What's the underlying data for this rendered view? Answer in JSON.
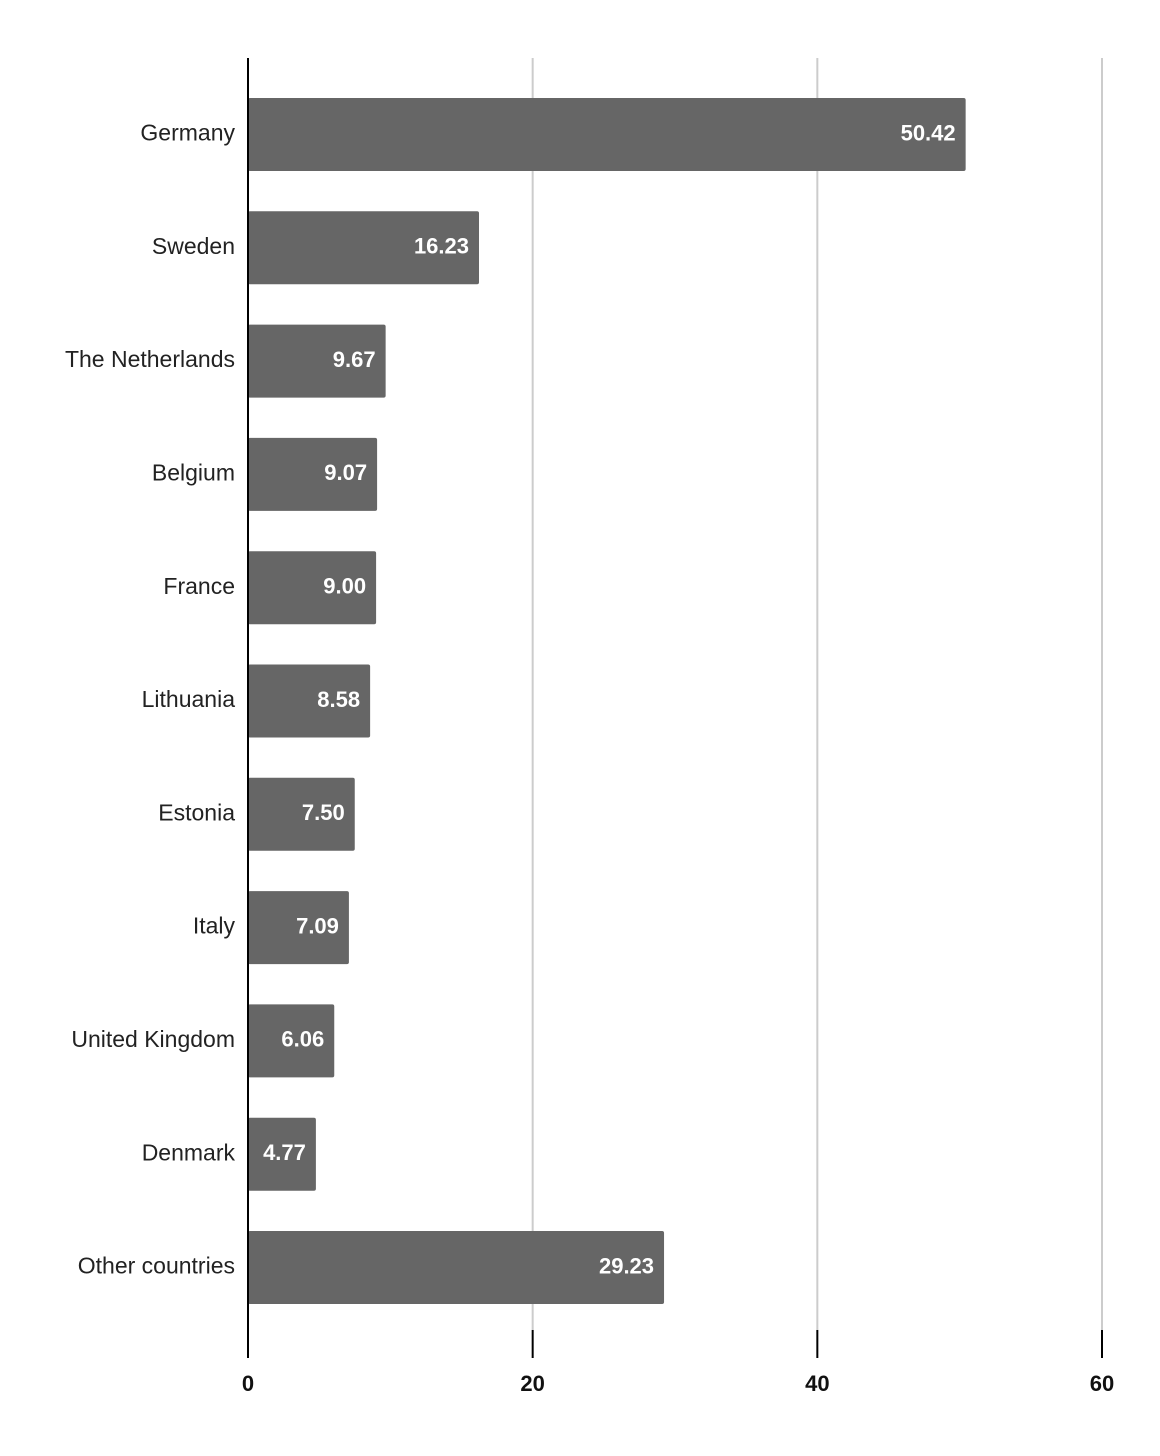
{
  "chart_data": {
    "type": "bar",
    "orientation": "horizontal",
    "title": "",
    "xlabel": "",
    "ylabel": "",
    "categories": [
      "Germany",
      "Sweden",
      "The Netherlands",
      "Belgium",
      "France",
      "Lithuania",
      "Estonia",
      "Italy",
      "United Kingdom",
      "Denmark",
      "Other countries"
    ],
    "values": [
      50.42,
      16.23,
      9.67,
      9.07,
      9.0,
      8.58,
      7.5,
      7.09,
      6.06,
      4.77,
      29.23
    ],
    "value_labels": [
      "50.42",
      "16.23",
      "9.67",
      "9.07",
      "9.00",
      "8.58",
      "7.50",
      "7.09",
      "6.06",
      "4.77",
      "29.23"
    ],
    "xlim": [
      0,
      60
    ],
    "ticks": [
      0,
      20,
      40,
      60
    ],
    "tick_labels": [
      "0",
      "20",
      "40",
      "60"
    ],
    "grid": true,
    "legend": "none",
    "colors": {
      "bar": "#666666",
      "grid": "#cccccc",
      "axis": "#000000",
      "value_label": "#ffffff"
    }
  }
}
